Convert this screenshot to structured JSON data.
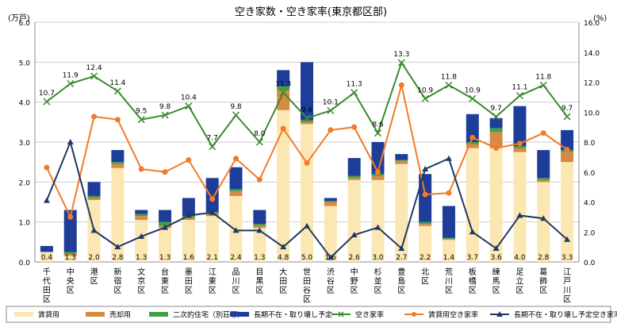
{
  "chart_data": {
    "type": "bar",
    "title": "空き家数・空き家率(東京都区部)",
    "y_left_unit": "(万戸)",
    "y_right_unit": "(%)",
    "ylim_left": [
      0,
      6
    ],
    "ylim_right": [
      0,
      16
    ],
    "yticks_left": [
      "0.0",
      "1.0",
      "2.0",
      "3.0",
      "4.0",
      "5.0",
      "6.0"
    ],
    "yticks_right": [
      "0.0",
      "2.0",
      "4.0",
      "6.0",
      "8.0",
      "10.0",
      "12.0",
      "14.0",
      "16.0"
    ],
    "grid": true,
    "legend_position": "bottom",
    "categories": [
      "千代田区",
      "中央区",
      "港区",
      "新宿区",
      "文京区",
      "台東区",
      "墨田区",
      "江東区",
      "品川区",
      "目黒区",
      "大田区",
      "世田谷区",
      "渋谷区",
      "中野区",
      "杉並区",
      "豊島区",
      "北区",
      "荒川区",
      "板橋区",
      "練馬区",
      "足立区",
      "葛飾区",
      "江戸川区"
    ],
    "bar_series": [
      {
        "name": "賃貸用",
        "color": "#fbe7b2",
        "values": [
          0.25,
          0.15,
          1.55,
          2.35,
          1.05,
          0.85,
          1.05,
          1.15,
          1.65,
          0.85,
          3.8,
          3.45,
          1.4,
          2.05,
          2.05,
          2.45,
          0.9,
          0.55,
          2.85,
          2.85,
          2.75,
          2.0,
          2.5
        ]
      },
      {
        "name": "売却用",
        "color": "#d68a45",
        "values": [
          0.0,
          0.05,
          0.05,
          0.1,
          0.1,
          0.05,
          0.05,
          0.05,
          0.12,
          0.05,
          0.5,
          0.05,
          0.1,
          0.05,
          0.1,
          0.08,
          0.05,
          0.03,
          0.1,
          0.4,
          0.1,
          0.05,
          0.25
        ]
      },
      {
        "name": "二次的住宅（別荘等）",
        "color": "#3fa048",
        "values": [
          0.0,
          0.05,
          0.05,
          0.05,
          0.05,
          0.1,
          0.05,
          0.05,
          0.05,
          0.05,
          0.1,
          0.05,
          0.03,
          0.05,
          0.05,
          0.02,
          0.05,
          0.02,
          0.05,
          0.1,
          0.05,
          0.05,
          0.05
        ]
      },
      {
        "name": "長期不在・取り壊し予定",
        "color": "#1e3d99",
        "values": [
          0.15,
          1.05,
          0.35,
          0.3,
          0.1,
          0.3,
          0.45,
          0.85,
          0.55,
          0.35,
          0.4,
          1.45,
          0.07,
          0.45,
          0.8,
          0.15,
          1.2,
          0.8,
          0.7,
          0.25,
          1.0,
          0.7,
          0.5
        ]
      }
    ],
    "bar_totals": [
      "0.4",
      "1.3",
      "2.0",
      "2.8",
      "1.3",
      "1.3",
      "1.6",
      "2.1",
      "2.4",
      "1.3",
      "4.8",
      "5.0",
      "1.6",
      "2.6",
      "3.0",
      "2.7",
      "2.2",
      "1.4",
      "3.7",
      "3.6",
      "4.0",
      "2.8",
      "3.3"
    ],
    "line_series": [
      {
        "name": "空き家率",
        "color": "#3a8a2e",
        "marker": "x",
        "values": [
          10.7,
          11.9,
          12.4,
          11.4,
          9.5,
          9.8,
          10.4,
          7.7,
          9.8,
          8.0,
          11.3,
          9.6,
          10.1,
          11.3,
          8.6,
          13.3,
          10.9,
          11.8,
          10.9,
          9.7,
          11.1,
          11.8,
          9.7
        ],
        "labels": [
          "10.7",
          "11.9",
          "12.4",
          "11.4",
          "9.5",
          "9.8",
          "10.4",
          "7.7",
          "9.8",
          "8.0",
          "11.3",
          "9.6",
          "10.1",
          "11.3",
          "8.6",
          "13.3",
          "10.9",
          "11.8",
          "10.9",
          "9.7",
          "11.1",
          "11.8",
          "9.7"
        ]
      },
      {
        "name": "賃貸用空き家率",
        "color": "#f27a28",
        "marker": "circle",
        "values": [
          6.3,
          3.0,
          9.7,
          9.5,
          6.2,
          6.0,
          6.8,
          4.2,
          6.9,
          5.5,
          8.9,
          6.6,
          8.8,
          9.0,
          6.0,
          11.8,
          4.5,
          4.6,
          8.3,
          7.6,
          7.9,
          8.6,
          7.5
        ]
      },
      {
        "name": "長期不在・取り壊し予定空き家率",
        "color": "#1f3864",
        "marker": "triangle",
        "values": [
          4.1,
          8.0,
          2.1,
          1.0,
          1.7,
          2.3,
          3.1,
          3.3,
          2.1,
          2.1,
          1.0,
          2.4,
          0.3,
          1.8,
          2.3,
          0.9,
          6.2,
          6.9,
          2.0,
          0.9,
          3.1,
          2.9,
          1.5
        ]
      }
    ]
  }
}
